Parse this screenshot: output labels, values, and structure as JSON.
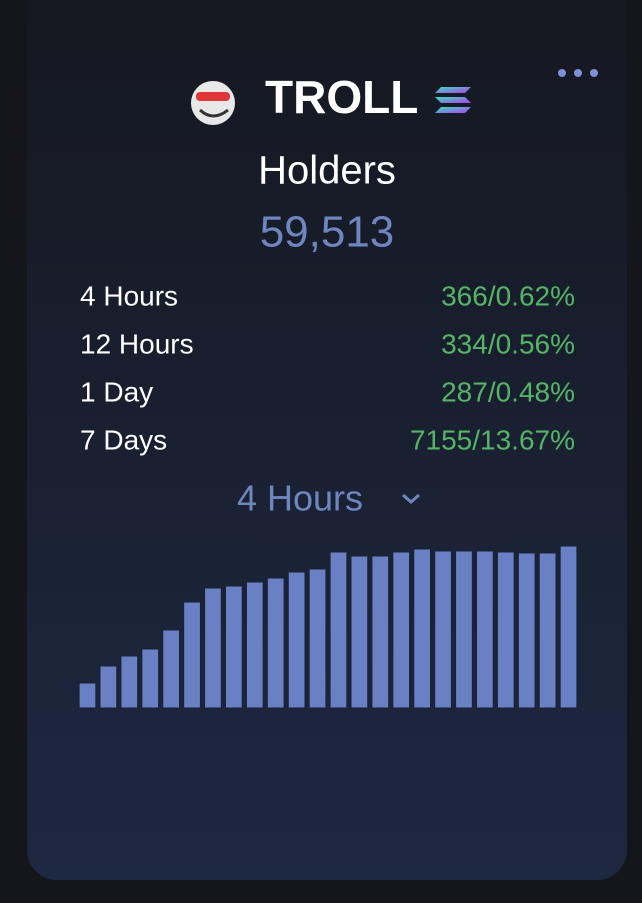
{
  "header": {
    "title": "TROLL"
  },
  "metric": {
    "label": "Holders",
    "value": "59,513"
  },
  "stats": [
    {
      "period": "4 Hours",
      "change": "366/0.62%"
    },
    {
      "period": "12 Hours",
      "change": "334/0.56%"
    },
    {
      "period": "1 Day",
      "change": "287/0.48%"
    },
    {
      "period": "7 Days",
      "change": "7155/13.67%"
    }
  ],
  "selector": {
    "label": "4 Hours"
  },
  "chart_data": {
    "type": "bar",
    "color": "#6a80c4",
    "ylim": [
      0,
      170
    ],
    "values": [
      25,
      42,
      52,
      59,
      78,
      106,
      120,
      122,
      126,
      130,
      136,
      139,
      156,
      152,
      152,
      156,
      159,
      157,
      157,
      157,
      156,
      155,
      155,
      162
    ]
  }
}
